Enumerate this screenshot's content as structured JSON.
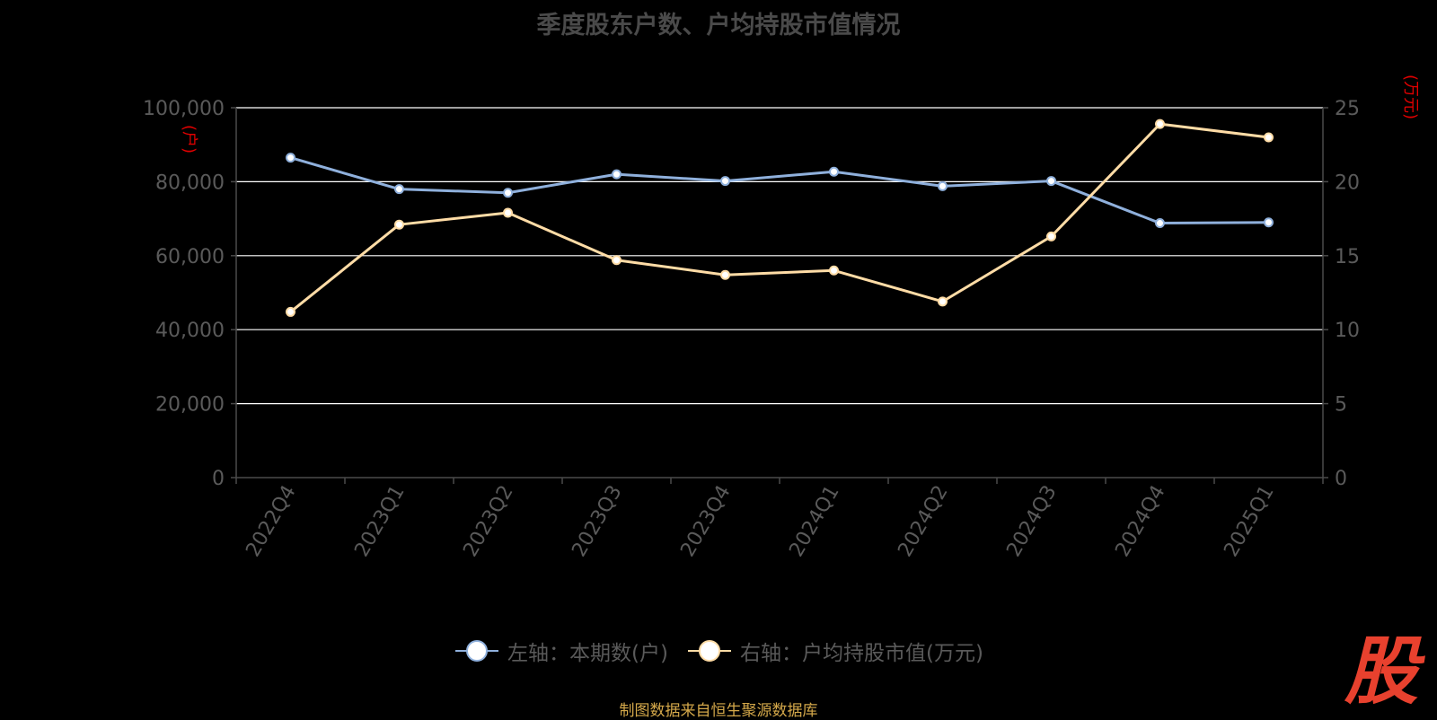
{
  "title": "季度股东户数、户均持股市值情况",
  "source_note": "制图数据来自恒生聚源数据库",
  "logo_char": "股",
  "colors": {
    "background": "#000000",
    "series_left": "#8fb0dc",
    "series_right": "#ffdca6",
    "grid": "#ffffff",
    "axis": "#4a4a4a",
    "tick_text": "#5a5a5a",
    "unit_text": "#e00000",
    "logo_red": "#e8412e"
  },
  "chart_data": {
    "type": "line",
    "title": "季度股东户数、户均持股市值情况",
    "categories": [
      "2022Q4",
      "2023Q1",
      "2023Q2",
      "2023Q3",
      "2023Q4",
      "2024Q1",
      "2024Q2",
      "2024Q3",
      "2024Q4",
      "2025Q1"
    ],
    "y_left": {
      "unit": "(户)",
      "ylim": [
        0,
        100000
      ],
      "ticks": [
        "0",
        "20,000",
        "40,000",
        "60,000",
        "80,000",
        "100,000"
      ]
    },
    "y_right": {
      "unit": "(万元)",
      "ylim": [
        0,
        25
      ],
      "ticks": [
        "0",
        "5",
        "10",
        "15",
        "20",
        "25"
      ]
    },
    "grid": true,
    "legend_position": "bottom-center",
    "series": [
      {
        "name": "左轴：本期数(户)",
        "axis": "left",
        "values": [
          86500,
          78000,
          77000,
          82000,
          80200,
          82700,
          78800,
          80200,
          68800,
          69000
        ]
      },
      {
        "name": "右轴：户均持股市值(万元)",
        "axis": "right",
        "values": [
          11.2,
          17.1,
          17.9,
          14.7,
          13.7,
          14.0,
          11.9,
          16.3,
          23.9,
          23.0
        ]
      }
    ]
  }
}
